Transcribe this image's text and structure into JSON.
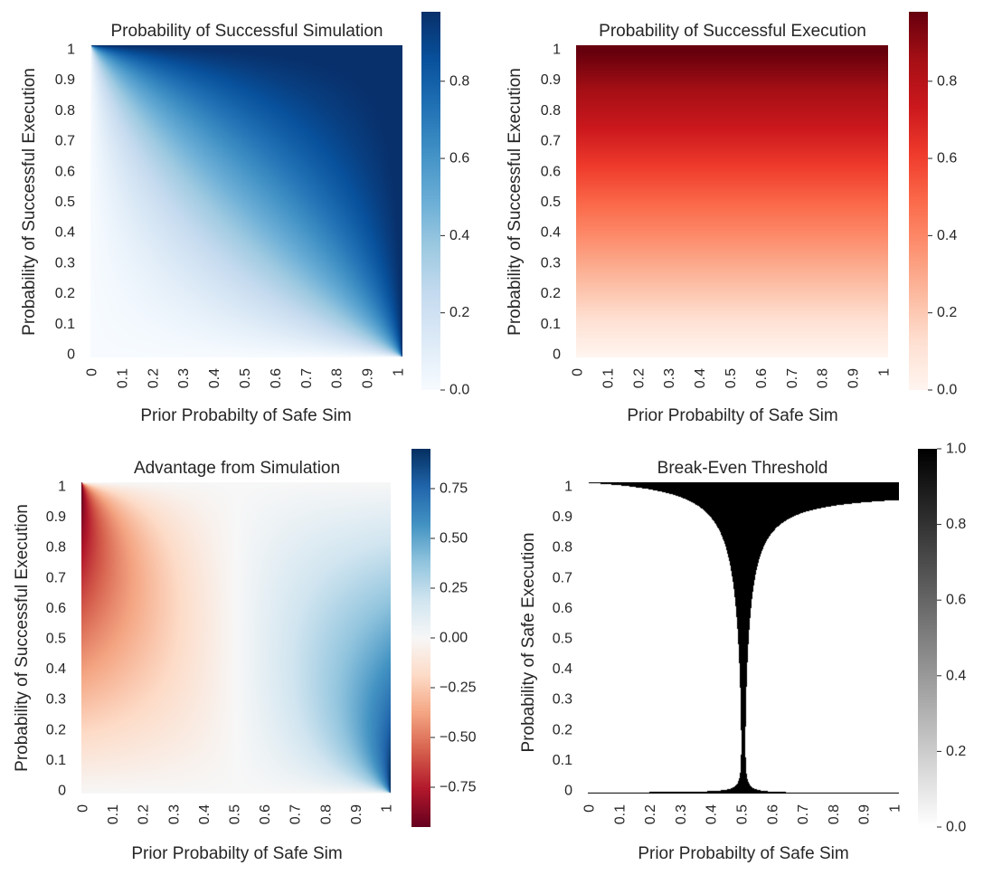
{
  "figure": "2x2 heatmap panels",
  "chart_data": [
    {
      "type": "heatmap",
      "title": "Probability of Successful Simulation",
      "xlabel": "Prior Probabilty of Safe Sim",
      "ylabel": "Probability of Successful Execution",
      "x_ticks": [
        "0",
        "0.1",
        "0.2",
        "0.3",
        "0.4",
        "0.5",
        "0.6",
        "0.7",
        "0.8",
        "0.9",
        "1"
      ],
      "y_ticks": [
        "0",
        "0.1",
        "0.2",
        "0.3",
        "0.4",
        "0.5",
        "0.6",
        "0.7",
        "0.8",
        "0.9",
        "1"
      ],
      "xlim": [
        0,
        1
      ],
      "ylim": [
        0,
        1
      ],
      "formula": "prior * exec / (prior * exec + (1 - prior) * (1 - exec))",
      "colormap": "Blues",
      "colorbar_ticks": [
        "0.0",
        "0.2",
        "0.4",
        "0.6",
        "0.8"
      ],
      "colorbar_range": [
        0,
        0.98
      ]
    },
    {
      "type": "heatmap",
      "title": "Probability of Successful Execution",
      "xlabel": "Prior Probabilty of Safe Sim",
      "ylabel": "Probability of Successful Execution",
      "x_ticks": [
        "0",
        "0.1",
        "0.2",
        "0.3",
        "0.4",
        "0.5",
        "0.6",
        "0.7",
        "0.8",
        "0.9",
        "1"
      ],
      "y_ticks": [
        "0",
        "0.1",
        "0.2",
        "0.3",
        "0.4",
        "0.5",
        "0.6",
        "0.7",
        "0.8",
        "0.9",
        "1"
      ],
      "xlim": [
        0,
        1
      ],
      "ylim": [
        0,
        1
      ],
      "formula": "exec",
      "colormap": "Reds",
      "colorbar_ticks": [
        "0.0",
        "0.2",
        "0.4",
        "0.6",
        "0.8"
      ],
      "colorbar_range": [
        0,
        0.98
      ]
    },
    {
      "type": "heatmap",
      "title": "Advantage from Simulation",
      "xlabel": "Prior Probabilty of Safe Sim",
      "ylabel": "Probability of Successful Execution",
      "x_ticks": [
        "0",
        "0.1",
        "0.2",
        "0.3",
        "0.4",
        "0.5",
        "0.6",
        "0.7",
        "0.8",
        "0.9",
        "1"
      ],
      "y_ticks": [
        "0",
        "0.1",
        "0.2",
        "0.3",
        "0.4",
        "0.5",
        "0.6",
        "0.7",
        "0.8",
        "0.9",
        "1"
      ],
      "xlim": [
        0,
        1
      ],
      "ylim": [
        0,
        1
      ],
      "formula": "P(successful simulation) - exec",
      "colormap": "RdBu",
      "colorbar_ticks": [
        "0.75",
        "0.50",
        "0.25",
        "0.00",
        "−0.25",
        "−0.50",
        "−0.75"
      ],
      "colorbar_range": [
        -0.95,
        0.95
      ]
    },
    {
      "type": "heatmap",
      "title": "Break-Even Threshold",
      "xlabel": "Prior Probabilty of Safe Sim",
      "ylabel": "Probability of Safe Execution",
      "x_ticks": [
        "0",
        "0.1",
        "0.2",
        "0.3",
        "0.4",
        "0.5",
        "0.6",
        "0.7",
        "0.8",
        "0.9",
        "1"
      ],
      "y_ticks": [
        "0",
        "0.1",
        "0.2",
        "0.3",
        "0.4",
        "0.5",
        "0.6",
        "0.7",
        "0.8",
        "0.9",
        "1"
      ],
      "xlim": [
        0,
        1
      ],
      "ylim": [
        0,
        1
      ],
      "formula": "|advantage| near zero marked black",
      "colormap": "Greys",
      "colorbar_ticks": [
        "1.0",
        "0.8",
        "0.6",
        "0.4",
        "0.2",
        "0.0"
      ],
      "colorbar_range": [
        0,
        1
      ]
    }
  ]
}
